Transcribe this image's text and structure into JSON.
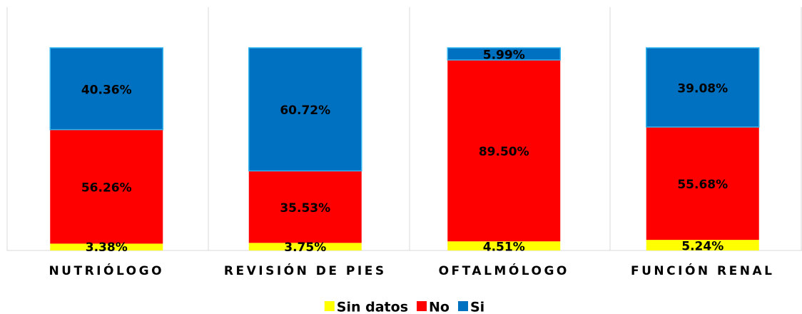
{
  "chart_data": {
    "type": "stacked_bar",
    "categories": [
      "NUTRIÓLOGO",
      "REVISIÓN DE PIES",
      "OFTALMÓLOGO",
      "FUNCIÓN RENAL"
    ],
    "ylim": [
      0,
      100
    ],
    "series": [
      {
        "name": "Sin datos",
        "color": "#ffff00",
        "values": [
          3.38,
          3.75,
          4.51,
          5.24
        ],
        "value_labels": [
          "3.38%",
          "3.75%",
          "4.51%",
          "5.24%"
        ]
      },
      {
        "name": "No",
        "color": "#ff0000",
        "values": [
          56.26,
          35.53,
          89.5,
          55.68
        ],
        "value_labels": [
          "56.26%",
          "35.53%",
          "89.50%",
          "55.68%"
        ]
      },
      {
        "name": "Si",
        "color": "#0070c0",
        "values": [
          40.36,
          60.72,
          5.99,
          39.08
        ],
        "value_labels": [
          "40.36%",
          "60.72%",
          "5.99%",
          "39.08%"
        ]
      }
    ],
    "legend": "bottom"
  }
}
